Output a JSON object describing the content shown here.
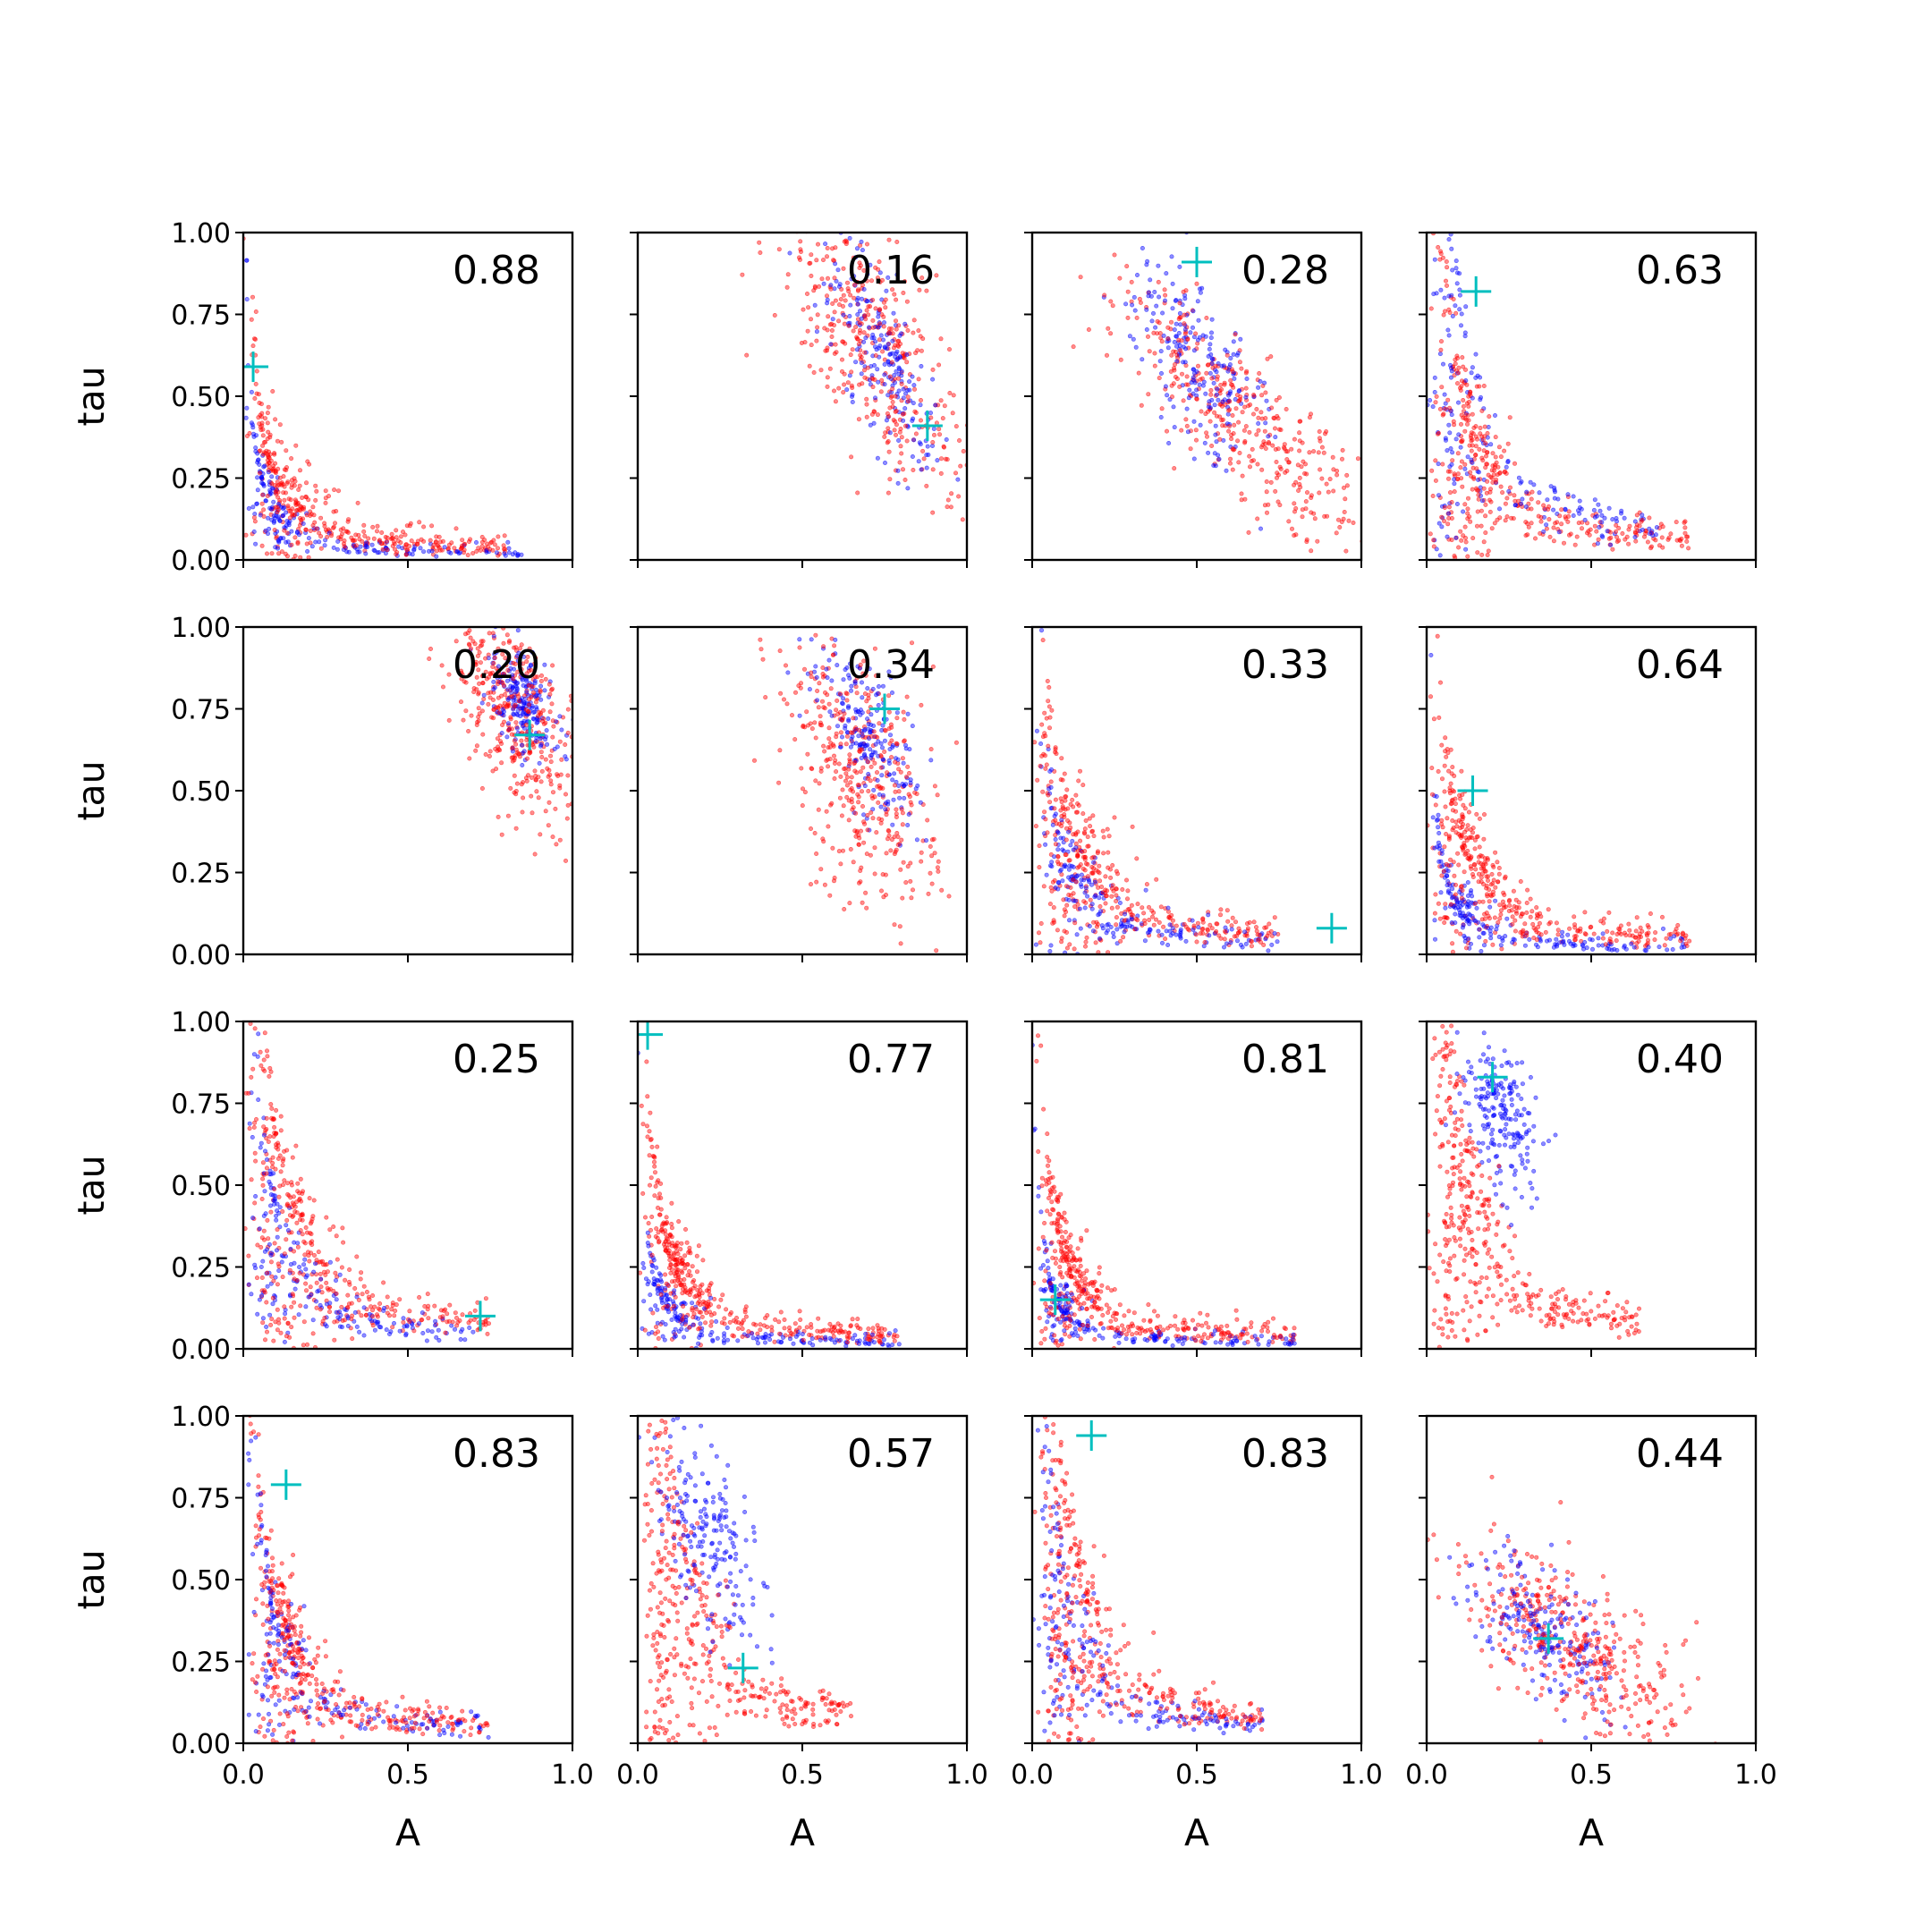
{
  "chart_data": {
    "type": "scatter",
    "layout": {
      "rows": 4,
      "cols": 4
    },
    "xlabel": "A",
    "ylabel": "tau",
    "xlim": [
      0,
      1
    ],
    "ylim": [
      0,
      1
    ],
    "xticks": [
      "0.0",
      "0.5",
      "1.0"
    ],
    "yticks": [
      "0.00",
      "0.25",
      "0.50",
      "0.75",
      "1.00"
    ],
    "colors": {
      "series_a": "#ff0000",
      "series_b": "#0000ff",
      "marker": "#00bfbf"
    },
    "panels": [
      {
        "value": "0.88",
        "truth": [
          0.03,
          0.59
        ],
        "blue": {
          "shape": "L",
          "k": 0.012,
          "sx": 0.05,
          "sy": 0.05,
          "spread": 0.55
        },
        "red": {
          "shape": "L",
          "k": 0.02,
          "sx": 0.1,
          "sy": 0.1,
          "spread": 0.5
        }
      },
      {
        "value": "0.16",
        "truth": [
          0.88,
          0.41
        ],
        "blue": {
          "shape": "band",
          "cx": 0.74,
          "cy": 0.62,
          "dx": 0.12,
          "dy": -0.32,
          "w": 0.06
        },
        "red": {
          "shape": "band",
          "cx": 0.72,
          "cy": 0.66,
          "dx": 0.22,
          "dy": -0.45,
          "w": 0.1
        }
      },
      {
        "value": "0.28",
        "truth": [
          0.5,
          0.91
        ],
        "blue": {
          "shape": "band",
          "cx": 0.5,
          "cy": 0.62,
          "dx": 0.13,
          "dy": -0.3,
          "w": 0.07
        },
        "red": {
          "shape": "band",
          "cx": 0.62,
          "cy": 0.45,
          "dx": 0.35,
          "dy": -0.4,
          "w": 0.09
        }
      },
      {
        "value": "0.63",
        "truth": [
          0.15,
          0.82
        ],
        "blue": {
          "shape": "L",
          "k": 0.08,
          "sx": 0.06,
          "sy": 0.1,
          "spread": 0.4
        },
        "red": {
          "shape": "L",
          "k": 0.05,
          "sx": 0.1,
          "sy": 0.1,
          "spread": 0.5
        }
      },
      {
        "value": "0.20",
        "truth": [
          0.87,
          0.67
        ],
        "blue": {
          "shape": "band",
          "cx": 0.85,
          "cy": 0.77,
          "dx": 0.06,
          "dy": -0.15,
          "w": 0.05
        },
        "red": {
          "shape": "band",
          "cx": 0.82,
          "cy": 0.75,
          "dx": 0.13,
          "dy": -0.3,
          "w": 0.08
        }
      },
      {
        "value": "0.34",
        "truth": [
          0.75,
          0.75
        ],
        "blue": {
          "shape": "band",
          "cx": 0.7,
          "cy": 0.68,
          "dx": 0.08,
          "dy": -0.25,
          "w": 0.06
        },
        "red": {
          "shape": "band",
          "cx": 0.68,
          "cy": 0.55,
          "dx": 0.15,
          "dy": -0.45,
          "w": 0.1
        }
      },
      {
        "value": "0.33",
        "truth": [
          0.91,
          0.08
        ],
        "blue": {
          "shape": "L",
          "k": 0.025,
          "sx": 0.1,
          "sy": 0.08,
          "spread": 0.45
        },
        "red": {
          "shape": "L",
          "k": 0.04,
          "sx": 0.12,
          "sy": 0.12,
          "spread": 0.45
        }
      },
      {
        "value": "0.64",
        "truth": [
          0.14,
          0.5
        ],
        "blue": {
          "shape": "L",
          "k": 0.012,
          "sx": 0.06,
          "sy": 0.06,
          "spread": 0.5
        },
        "red": {
          "shape": "L",
          "k": 0.035,
          "sx": 0.1,
          "sy": 0.1,
          "spread": 0.5
        }
      },
      {
        "value": "0.25",
        "truth": [
          0.72,
          0.1
        ],
        "blue": {
          "shape": "L",
          "k": 0.04,
          "sx": 0.1,
          "sy": 0.06,
          "spread": 0.4
        },
        "red": {
          "shape": "L",
          "k": 0.06,
          "sx": 0.12,
          "sy": 0.1,
          "spread": 0.45
        }
      },
      {
        "value": "0.77",
        "truth": [
          0.03,
          0.96
        ],
        "blue": {
          "shape": "L",
          "k": 0.01,
          "sx": 0.05,
          "sy": 0.05,
          "spread": 0.5
        },
        "red": {
          "shape": "L",
          "k": 0.025,
          "sx": 0.08,
          "sy": 0.08,
          "spread": 0.5
        }
      },
      {
        "value": "0.81",
        "truth": [
          0.07,
          0.15
        ],
        "blue": {
          "shape": "L",
          "k": 0.01,
          "sx": 0.05,
          "sy": 0.05,
          "spread": 0.5
        },
        "red": {
          "shape": "L",
          "k": 0.025,
          "sx": 0.08,
          "sy": 0.08,
          "spread": 0.5
        }
      },
      {
        "value": "0.40",
        "truth": [
          0.2,
          0.83
        ],
        "blue": {
          "shape": "band",
          "cx": 0.22,
          "cy": 0.72,
          "dx": 0.06,
          "dy": -0.22,
          "w": 0.05
        },
        "red": {
          "shape": "L",
          "k": 0.07,
          "sx": 0.1,
          "sy": 0.1,
          "spread": 0.35
        }
      },
      {
        "value": "0.83",
        "truth": [
          0.13,
          0.79
        ],
        "blue": {
          "shape": "L",
          "k": 0.035,
          "sx": 0.07,
          "sy": 0.08,
          "spread": 0.45
        },
        "red": {
          "shape": "L",
          "k": 0.04,
          "sx": 0.1,
          "sy": 0.1,
          "spread": 0.45
        }
      },
      {
        "value": "0.57",
        "truth": [
          0.32,
          0.23
        ],
        "blue": {
          "shape": "band",
          "cx": 0.22,
          "cy": 0.62,
          "dx": 0.1,
          "dy": -0.32,
          "w": 0.06
        },
        "red": {
          "shape": "L",
          "k": 0.08,
          "sx": 0.1,
          "sy": 0.1,
          "spread": 0.35
        }
      },
      {
        "value": "0.83",
        "truth": [
          0.18,
          0.94
        ],
        "blue": {
          "shape": "L",
          "k": 0.045,
          "sx": 0.08,
          "sy": 0.08,
          "spread": 0.4
        },
        "red": {
          "shape": "L",
          "k": 0.07,
          "sx": 0.1,
          "sy": 0.1,
          "spread": 0.4
        }
      },
      {
        "value": "0.44",
        "truth": [
          0.37,
          0.32
        ],
        "blue": {
          "shape": "band",
          "cx": 0.35,
          "cy": 0.35,
          "dx": 0.15,
          "dy": -0.2,
          "w": 0.08
        },
        "red": {
          "shape": "band",
          "cx": 0.45,
          "cy": 0.3,
          "dx": 0.3,
          "dy": -0.28,
          "w": 0.1
        }
      }
    ]
  }
}
